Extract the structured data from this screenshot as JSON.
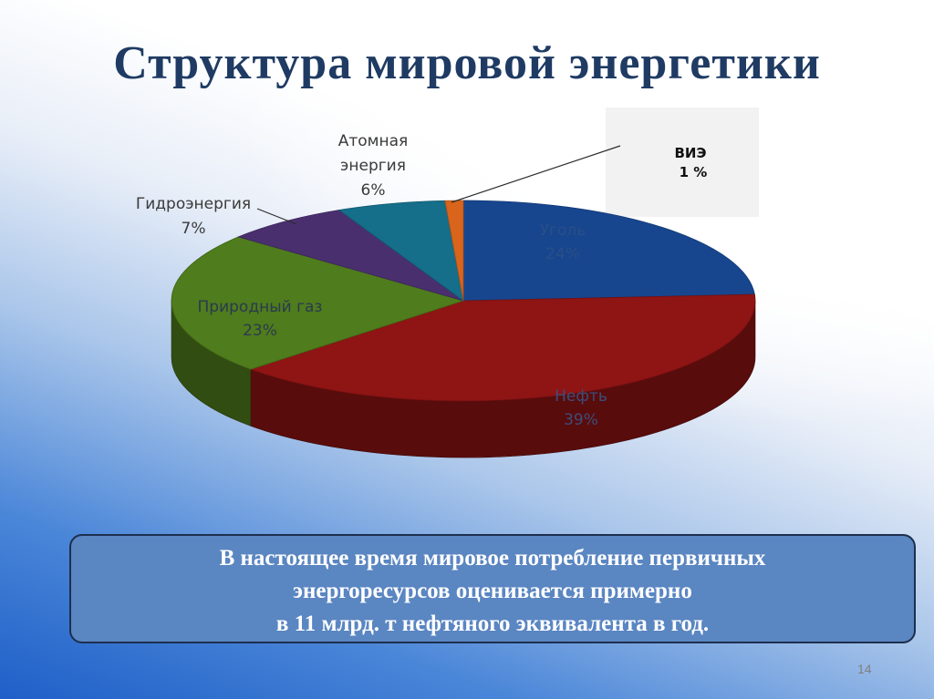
{
  "slide": {
    "title": "Структура мировой энергетики",
    "page_number": "14"
  },
  "info_box": {
    "lines": [
      "В настоящее время мировое потребление первичных",
      "энергоресурсов  оценивается примерно",
      "в 11 млрд. т нефтяного эквивалента в год."
    ]
  },
  "chart_data": {
    "type": "pie",
    "style": "3d",
    "title": "",
    "slices": [
      {
        "name": "Уголь",
        "label": "Уголь",
        "value_label": "24%",
        "value": 24,
        "color": "#17468f"
      },
      {
        "name": "Нефть",
        "label": "Нефть",
        "value_label": "39%",
        "value": 39,
        "color": "#8f1414"
      },
      {
        "name": "Природный газ",
        "label": "Природный газ",
        "value_label": "23%",
        "value": 23,
        "color": "#4f7c1c"
      },
      {
        "name": "Гидроэнергия",
        "label": "Гидроэнергия",
        "value_label": "7%",
        "value": 7,
        "color": "#4a2f6f"
      },
      {
        "name": "Атомная энергия",
        "label_lines": [
          "Атомная",
          "энергия"
        ],
        "value_label": "6%",
        "value": 6,
        "color": "#156e8a"
      },
      {
        "name": "ВИЭ",
        "label": "ВИЭ",
        "value_label": "1 %",
        "value": 1,
        "color": "#d9641c"
      }
    ]
  }
}
